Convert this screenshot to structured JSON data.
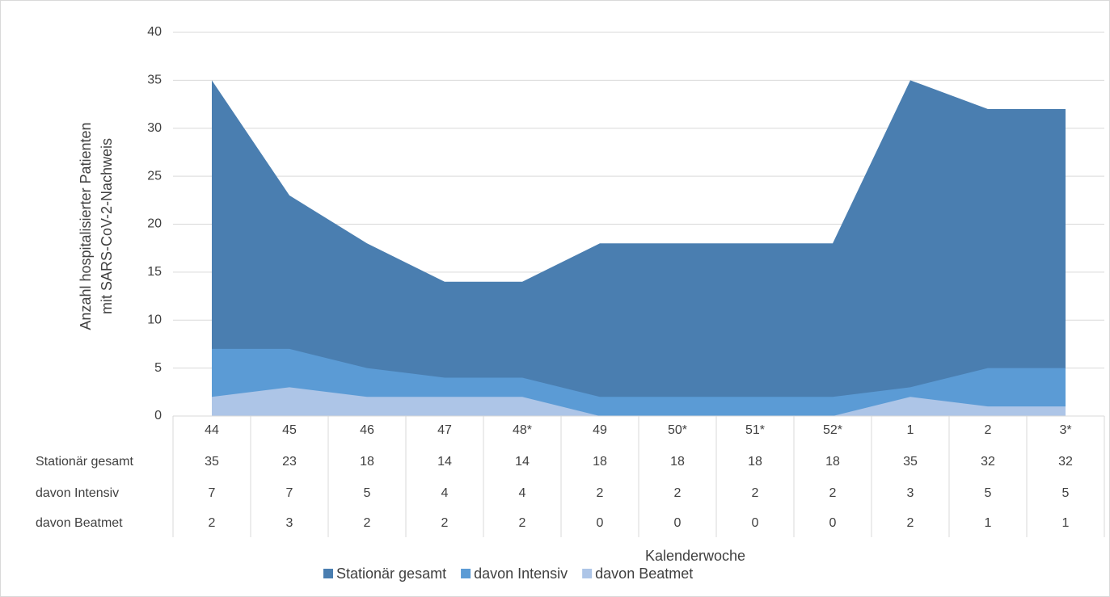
{
  "chart_data": {
    "type": "area",
    "y_label": [
      "Anzahl hospitalisierter Patienten",
      "mit SARS-CoV-2-Nachweis"
    ],
    "x_label": "Kalenderwoche",
    "categories": [
      "44",
      "45",
      "46",
      "47",
      "48*",
      "49",
      "50*",
      "51*",
      "52*",
      "1",
      "2",
      "3*"
    ],
    "series": [
      {
        "name": "Stationär gesamt",
        "color": "#4a7eb0",
        "values": [
          35,
          23,
          18,
          14,
          14,
          18,
          18,
          18,
          18,
          35,
          32,
          32
        ]
      },
      {
        "name": "davon Intensiv",
        "color": "#5b9bd5",
        "values": [
          7,
          7,
          5,
          4,
          4,
          2,
          2,
          2,
          2,
          3,
          5,
          5
        ]
      },
      {
        "name": "davon Beatmet",
        "color": "#adc5e7",
        "values": [
          2,
          3,
          2,
          2,
          2,
          0,
          0,
          0,
          0,
          2,
          1,
          1
        ]
      }
    ],
    "ylim": [
      0,
      40
    ],
    "yticks": [
      0,
      5,
      10,
      15,
      20,
      25,
      30,
      35,
      40
    ],
    "grid": true,
    "legend": "bottom"
  }
}
